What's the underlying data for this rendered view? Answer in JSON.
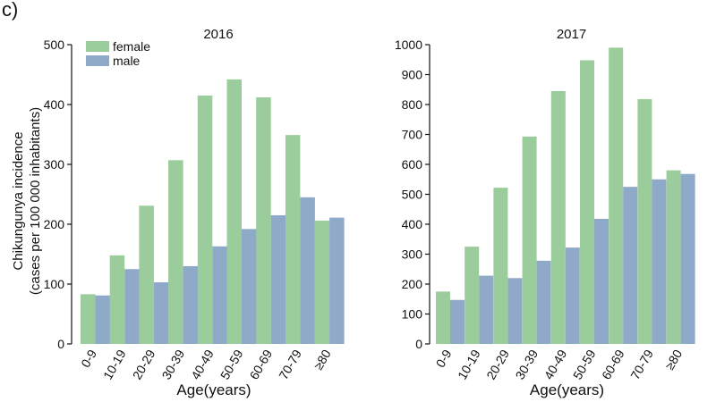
{
  "panel_label": "c)",
  "y_axis_title": [
    "Chikungunya incidence",
    "(cases per 100 000 inhabitants)"
  ],
  "colors": {
    "female": "#9bcc9b",
    "male": "#8fa9c9"
  },
  "chart_data": [
    {
      "type": "bar",
      "title": "2016",
      "xlabel": "Age(years)",
      "ylabel": "Chikungunya incidence (cases per 100 000 inhabitants)",
      "categories": [
        "0-9",
        "10-19",
        "20-29",
        "30-39",
        "40-49",
        "50-59",
        "60-69",
        "70-79",
        "≥80"
      ],
      "ylim": [
        0,
        500
      ],
      "yticks": [
        0,
        100,
        200,
        300,
        400,
        500
      ],
      "legend": {
        "position": "top-left",
        "entries": [
          "female",
          "male"
        ]
      },
      "grid": false,
      "series": [
        {
          "name": "female",
          "values": [
            83,
            148,
            231,
            307,
            415,
            442,
            412,
            349,
            206
          ]
        },
        {
          "name": "male",
          "values": [
            81,
            125,
            103,
            130,
            163,
            192,
            215,
            245,
            211
          ]
        }
      ]
    },
    {
      "type": "bar",
      "title": "2017",
      "xlabel": "Age(years)",
      "ylabel": "",
      "categories": [
        "0-9",
        "10-19",
        "20-29",
        "30-39",
        "40-49",
        "50-59",
        "60-69",
        "70-79",
        "≥80"
      ],
      "ylim": [
        0,
        1000
      ],
      "yticks": [
        0,
        100,
        200,
        300,
        400,
        500,
        600,
        700,
        800,
        900,
        1000
      ],
      "grid": false,
      "series": [
        {
          "name": "female",
          "values": [
            175,
            325,
            522,
            693,
            845,
            948,
            990,
            818,
            580
          ]
        },
        {
          "name": "male",
          "values": [
            147,
            228,
            220,
            278,
            322,
            418,
            525,
            550,
            568
          ]
        }
      ]
    }
  ]
}
